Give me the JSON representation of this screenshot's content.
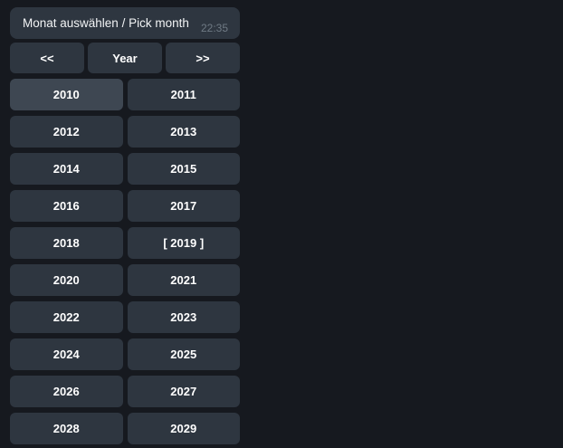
{
  "message": {
    "text": "Monat auswählen / Pick month",
    "time": "22:35"
  },
  "keyboard": {
    "nav": {
      "prev": "<<",
      "mode": "Year",
      "next": ">>"
    },
    "year_rows": [
      [
        "2010",
        "2011"
      ],
      [
        "2012",
        "2013"
      ],
      [
        "2014",
        "2015"
      ],
      [
        "2016",
        "2017"
      ],
      [
        "2018",
        "[ 2019 ]"
      ],
      [
        "2020",
        "2021"
      ],
      [
        "2022",
        "2023"
      ],
      [
        "2024",
        "2025"
      ],
      [
        "2026",
        "2027"
      ],
      [
        "2028",
        "2029"
      ]
    ],
    "highlighted_year": "2010",
    "selected_year_label": "[ 2019 ]"
  },
  "colors": {
    "background": "#16191f",
    "bubble": "#2e3640",
    "button": "#2e3640",
    "button_highlighted": "#3e4752",
    "text": "#ffffff",
    "message_text": "#f2f4f5",
    "timestamp": "#6f7a84"
  }
}
